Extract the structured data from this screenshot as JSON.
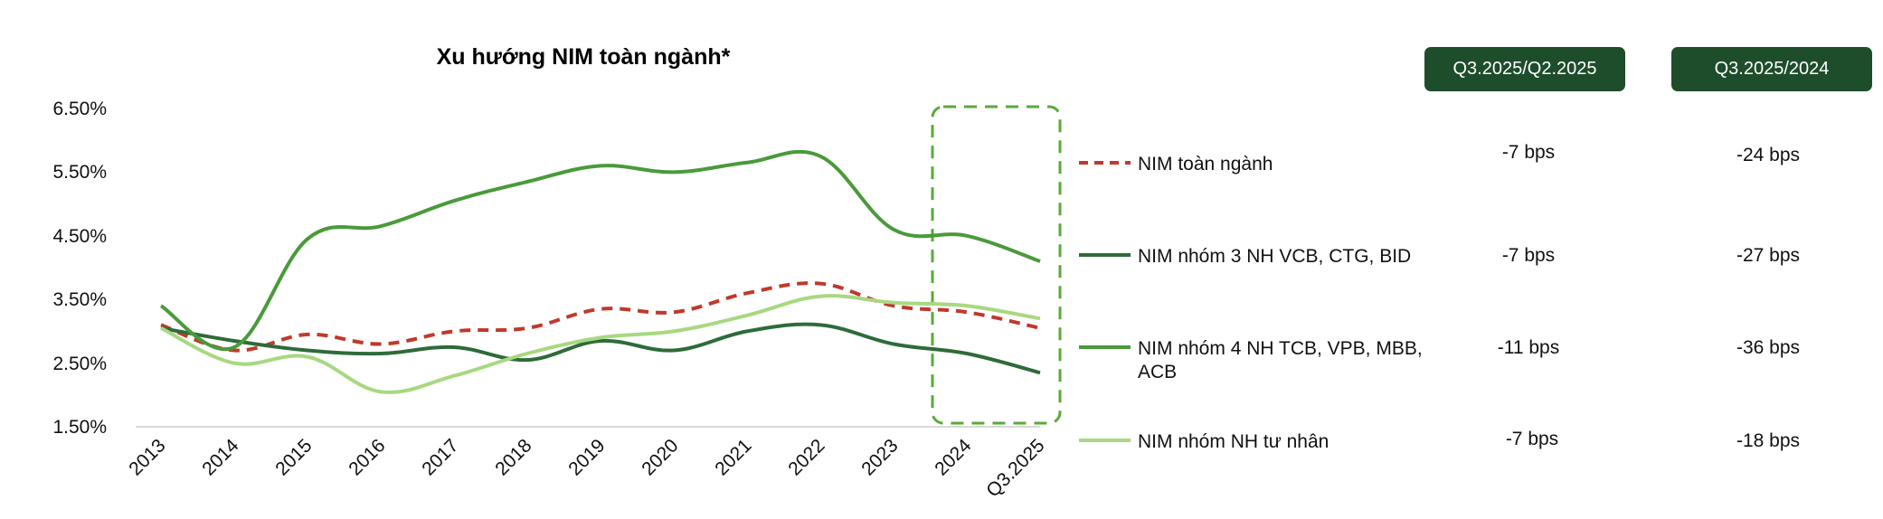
{
  "chart_data": {
    "type": "line",
    "title": "Xu hướng NIM toàn ngành*",
    "categories": [
      "2013",
      "2014",
      "2015",
      "2016",
      "2017",
      "2018",
      "2019",
      "2020",
      "2021",
      "2022",
      "2023",
      "2024",
      "Q3.2025"
    ],
    "y_ticks": [
      "6.50%",
      "5.50%",
      "4.50%",
      "3.50%",
      "2.50%",
      "1.50%"
    ],
    "ylim": [
      1.5,
      6.5
    ],
    "highlight": [
      "2024",
      "Q3.2025"
    ],
    "series": [
      {
        "name": "NIM toàn ngành",
        "color": "#c0392b",
        "dashed": true,
        "values": [
          3.1,
          2.7,
          2.95,
          2.8,
          3.0,
          3.05,
          3.35,
          3.3,
          3.6,
          3.75,
          3.4,
          3.3,
          3.05
        ]
      },
      {
        "name": "NIM nhóm 3 NH VCB, CTG, BID",
        "color": "#2e6b3a",
        "dashed": false,
        "values": [
          3.05,
          2.85,
          2.7,
          2.65,
          2.75,
          2.55,
          2.85,
          2.7,
          3.0,
          3.1,
          2.8,
          2.65,
          2.35
        ]
      },
      {
        "name": "NIM nhóm 4 NH TCB, VPB, MBB, ACB",
        "color": "#4a9a3a",
        "dashed": false,
        "values": [
          3.4,
          2.75,
          4.45,
          4.65,
          5.05,
          5.35,
          5.6,
          5.5,
          5.65,
          5.75,
          4.6,
          4.5,
          4.1
        ]
      },
      {
        "name": "NIM nhóm NH tư nhân",
        "color": "#a8d880",
        "dashed": false,
        "values": [
          3.05,
          2.5,
          2.6,
          2.05,
          2.3,
          2.65,
          2.9,
          3.0,
          3.25,
          3.55,
          3.45,
          3.4,
          3.2
        ]
      }
    ]
  },
  "legend": [
    {
      "label": "NIM toàn ngành",
      "q_change": "-7 bps",
      "y_change": "-24 bps"
    },
    {
      "label": "NIM nhóm 3 NH VCB, CTG, BID",
      "q_change": "-7 bps",
      "y_change": "-27 bps"
    },
    {
      "label_line1": "NIM nhóm 4 NH TCB, VPB, MBB,",
      "label_line2": "ACB",
      "q_change": "-11 bps",
      "y_change": "-36 bps"
    },
    {
      "label": "NIM nhóm NH tư nhân",
      "q_change": "-7 bps",
      "y_change": "-18 bps"
    }
  ],
  "table_headers": {
    "col1": "Q3.2025/Q2.2025",
    "col2": "Q3.2025/2024"
  }
}
